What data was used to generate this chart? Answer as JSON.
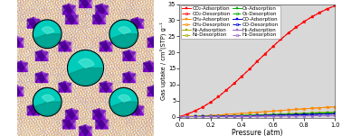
{
  "pressure": [
    0.0,
    0.05,
    0.1,
    0.15,
    0.2,
    0.25,
    0.3,
    0.35,
    0.4,
    0.45,
    0.5,
    0.55,
    0.6,
    0.65,
    0.7,
    0.75,
    0.8,
    0.85,
    0.9,
    0.95,
    1.0
  ],
  "co2_ads": [
    0.0,
    0.8,
    1.8,
    3.0,
    4.5,
    6.2,
    8.2,
    10.3,
    12.5,
    14.8,
    17.2,
    19.5,
    21.8,
    24.0,
    26.0,
    27.8,
    29.5,
    31.0,
    32.3,
    33.5,
    34.5
  ],
  "co2_des": [
    0.0,
    0.85,
    1.9,
    3.1,
    4.6,
    6.3,
    8.3,
    10.4,
    12.6,
    14.9,
    17.3,
    19.6,
    21.9,
    24.1,
    26.1,
    27.9,
    29.6,
    31.1,
    32.4,
    33.6,
    34.5
  ],
  "ch4_ads": [
    0.0,
    0.07,
    0.15,
    0.25,
    0.38,
    0.52,
    0.68,
    0.85,
    1.02,
    1.2,
    1.38,
    1.56,
    1.74,
    1.92,
    2.1,
    2.28,
    2.45,
    2.62,
    2.78,
    2.93,
    3.08
  ],
  "ch4_des": [
    0.0,
    0.08,
    0.16,
    0.26,
    0.39,
    0.53,
    0.69,
    0.86,
    1.03,
    1.21,
    1.39,
    1.57,
    1.75,
    1.93,
    2.11,
    2.29,
    2.46,
    2.63,
    2.79,
    2.94,
    3.08
  ],
  "n2_ads": [
    0.0,
    0.02,
    0.05,
    0.09,
    0.14,
    0.2,
    0.26,
    0.33,
    0.41,
    0.49,
    0.57,
    0.65,
    0.74,
    0.83,
    0.92,
    1.01,
    1.1,
    1.19,
    1.28,
    1.37,
    1.46
  ],
  "n2_des": [
    0.0,
    0.02,
    0.05,
    0.09,
    0.14,
    0.2,
    0.26,
    0.33,
    0.41,
    0.49,
    0.57,
    0.65,
    0.74,
    0.83,
    0.92,
    1.01,
    1.1,
    1.19,
    1.28,
    1.37,
    1.46
  ],
  "o2_ads": [
    0.0,
    0.02,
    0.04,
    0.07,
    0.11,
    0.16,
    0.21,
    0.27,
    0.33,
    0.4,
    0.47,
    0.54,
    0.61,
    0.69,
    0.77,
    0.85,
    0.93,
    1.01,
    1.09,
    1.17,
    1.25
  ],
  "o2_des": [
    0.0,
    0.02,
    0.04,
    0.07,
    0.11,
    0.16,
    0.21,
    0.27,
    0.33,
    0.4,
    0.47,
    0.54,
    0.61,
    0.69,
    0.77,
    0.85,
    0.93,
    1.01,
    1.09,
    1.17,
    1.25
  ],
  "co_ads": [
    0.0,
    0.01,
    0.03,
    0.05,
    0.08,
    0.11,
    0.15,
    0.19,
    0.23,
    0.28,
    0.33,
    0.38,
    0.43,
    0.48,
    0.54,
    0.6,
    0.66,
    0.72,
    0.78,
    0.84,
    0.9
  ],
  "co_des": [
    0.0,
    0.01,
    0.03,
    0.05,
    0.08,
    0.11,
    0.15,
    0.19,
    0.23,
    0.28,
    0.33,
    0.38,
    0.43,
    0.48,
    0.54,
    0.6,
    0.66,
    0.72,
    0.78,
    0.84,
    0.9
  ],
  "h2_ads": [
    0.0,
    0.005,
    0.01,
    0.02,
    0.03,
    0.04,
    0.06,
    0.07,
    0.09,
    0.11,
    0.13,
    0.15,
    0.17,
    0.19,
    0.22,
    0.24,
    0.27,
    0.29,
    0.32,
    0.34,
    0.37
  ],
  "h2_des": [
    0.0,
    0.005,
    0.01,
    0.02,
    0.03,
    0.04,
    0.06,
    0.07,
    0.09,
    0.11,
    0.13,
    0.15,
    0.17,
    0.19,
    0.22,
    0.24,
    0.27,
    0.29,
    0.32,
    0.34,
    0.37
  ],
  "co2_color": "#ff0000",
  "ch4_color": "#ff8800",
  "n2_color": "#aaaa00",
  "o2_color": "#00aa00",
  "co_color": "#0000cc",
  "h2_color": "#9966cc",
  "ylim": [
    -0.5,
    35
  ],
  "yticks": [
    0,
    5,
    10,
    15,
    20,
    25,
    30,
    35
  ],
  "xlim": [
    0.0,
    1.0
  ],
  "xticks": [
    0.0,
    0.2,
    0.4,
    0.6,
    0.8,
    1.0
  ],
  "xlabel": "Pressure (atm)",
  "ylabel": "Gas uptake / cm³(STP) g⁻¹",
  "legend_fontsize": 4.0,
  "bg_color": "#d8d8d8",
  "mof_bg": "#ffffff",
  "cyan_color": "#00ccbb",
  "cyan_dark": "#008877",
  "purple_color": "#7700cc",
  "purple_dark": "#440088"
}
